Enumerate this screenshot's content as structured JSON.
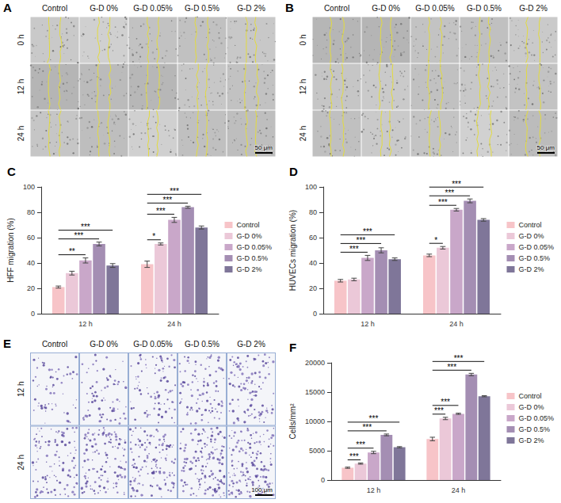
{
  "image_panels": [
    {
      "letter": "A",
      "columns": [
        "Control",
        "G-D 0%",
        "G-D 0.05%",
        "G-D 0.5%",
        "G-D 2%"
      ],
      "rows": [
        "0 h",
        "12 h",
        "24 h"
      ],
      "scale_bar": "50 μm"
    },
    {
      "letter": "B",
      "columns": [
        "Control",
        "G-D 0%",
        "G-D 0.05%",
        "G-D 0.5%",
        "G-D 2%"
      ],
      "rows": [
        "0 h",
        "12 h",
        "24 h"
      ],
      "scale_bar": "50 μm"
    },
    {
      "letter": "E",
      "columns": [
        "Control",
        "G-D 0%",
        "G-D 0.05%",
        "G-D 0.5%",
        "G-D 2%"
      ],
      "rows": [
        "12 h",
        "24 h"
      ],
      "scale_bar": "100 μm"
    }
  ],
  "chart_data": [
    {
      "letter": "C",
      "type": "bar",
      "ylabel": "HFF migration (%)",
      "categories": [
        "12 h",
        "24 h"
      ],
      "ylim": [
        0,
        100
      ],
      "yticks": [
        0,
        20,
        40,
        60,
        80,
        100
      ],
      "grid": false,
      "legend": "right",
      "series": [
        {
          "name": "Control",
          "color": "#f7c4c8",
          "values": [
            21,
            39
          ],
          "errors": [
            0.8,
            2.5
          ]
        },
        {
          "name": "G-D 0%",
          "color": "#ebc8d8",
          "values": [
            32,
            55
          ],
          "errors": [
            1.5,
            0.8
          ]
        },
        {
          "name": "G-D 0.05%",
          "color": "#c9a7c9",
          "values": [
            42,
            74
          ],
          "errors": [
            2,
            2
          ]
        },
        {
          "name": "G-D 0.5%",
          "color": "#a48eb3",
          "values": [
            55,
            84
          ],
          "errors": [
            1.5,
            0.8
          ]
        },
        {
          "name": "G-D 2%",
          "color": "#7f7699",
          "values": [
            38,
            68
          ],
          "errors": [
            1.5,
            1.2
          ]
        }
      ],
      "significance": [
        {
          "category": "12 h",
          "from": "Control",
          "to": "G-D 0.05%",
          "label": "**"
        },
        {
          "category": "12 h",
          "from": "Control",
          "to": "G-D 0.5%",
          "label": "***"
        },
        {
          "category": "12 h",
          "from": "Control",
          "to": "G-D 2%",
          "label": "***"
        },
        {
          "category": "24 h",
          "from": "Control",
          "to": "G-D 0%",
          "label": "*"
        },
        {
          "category": "24 h",
          "from": "Control",
          "to": "G-D 0.05%",
          "label": "***"
        },
        {
          "category": "24 h",
          "from": "Control",
          "to": "G-D 0.5%",
          "label": "***"
        },
        {
          "category": "24 h",
          "from": "Control",
          "to": "G-D 2%",
          "label": "***"
        }
      ]
    },
    {
      "letter": "D",
      "type": "bar",
      "ylabel": "HUVECs migration (%)",
      "categories": [
        "12 h",
        "24 h"
      ],
      "ylim": [
        0,
        100
      ],
      "yticks": [
        0,
        20,
        40,
        60,
        80,
        100
      ],
      "grid": false,
      "legend": "right",
      "series": [
        {
          "name": "Control",
          "color": "#f7c4c8",
          "values": [
            26,
            46
          ],
          "errors": [
            1,
            1
          ]
        },
        {
          "name": "G-D 0%",
          "color": "#ebc8d8",
          "values": [
            27,
            52
          ],
          "errors": [
            1,
            1
          ]
        },
        {
          "name": "G-D 0.05%",
          "color": "#c9a7c9",
          "values": [
            44,
            82
          ],
          "errors": [
            2,
            1
          ]
        },
        {
          "name": "G-D 0.5%",
          "color": "#a48eb3",
          "values": [
            50,
            89
          ],
          "errors": [
            2,
            1.5
          ]
        },
        {
          "name": "G-D 2%",
          "color": "#7f7699",
          "values": [
            43,
            74
          ],
          "errors": [
            1,
            1
          ]
        }
      ],
      "significance": [
        {
          "category": "12 h",
          "from": "Control",
          "to": "G-D 0.05%",
          "label": "***"
        },
        {
          "category": "12 h",
          "from": "Control",
          "to": "G-D 0.5%",
          "label": "***"
        },
        {
          "category": "12 h",
          "from": "Control",
          "to": "G-D 2%",
          "label": "***"
        },
        {
          "category": "24 h",
          "from": "Control",
          "to": "G-D 0%",
          "label": "*"
        },
        {
          "category": "24 h",
          "from": "Control",
          "to": "G-D 0.05%",
          "label": "***"
        },
        {
          "category": "24 h",
          "from": "Control",
          "to": "G-D 0.5%",
          "label": "***"
        },
        {
          "category": "24 h",
          "from": "Control",
          "to": "G-D 2%",
          "label": "***"
        }
      ]
    },
    {
      "letter": "F",
      "type": "bar",
      "ylabel": "Cells/mm²",
      "categories": [
        "12 h",
        "24 h"
      ],
      "ylim": [
        0,
        20000
      ],
      "yticks": [
        0,
        5000,
        10000,
        15000,
        20000
      ],
      "grid": false,
      "legend": "right",
      "series": [
        {
          "name": "Control",
          "color": "#f7c4c8",
          "values": [
            2100,
            7000
          ],
          "errors": [
            100,
            300
          ]
        },
        {
          "name": "G-D 0%",
          "color": "#ebc8d8",
          "values": [
            2800,
            10500
          ],
          "errors": [
            100,
            200
          ]
        },
        {
          "name": "G-D 0.05%",
          "color": "#c9a7c9",
          "values": [
            4700,
            11300
          ],
          "errors": [
            200,
            100
          ]
        },
        {
          "name": "G-D 0.5%",
          "color": "#a48eb3",
          "values": [
            7700,
            18000
          ],
          "errors": [
            150,
            200
          ]
        },
        {
          "name": "G-D 2%",
          "color": "#7f7699",
          "values": [
            5600,
            14300
          ],
          "errors": [
            100,
            100
          ]
        }
      ],
      "significance": [
        {
          "category": "12 h",
          "from": "Control",
          "to": "G-D 0%",
          "label": "***"
        },
        {
          "category": "12 h",
          "from": "Control",
          "to": "G-D 0.05%",
          "label": "***"
        },
        {
          "category": "12 h",
          "from": "Control",
          "to": "G-D 0.5%",
          "label": "***"
        },
        {
          "category": "12 h",
          "from": "Control",
          "to": "G-D 2%",
          "label": "***"
        },
        {
          "category": "24 h",
          "from": "Control",
          "to": "G-D 0%",
          "label": "***"
        },
        {
          "category": "24 h",
          "from": "Control",
          "to": "G-D 0.05%",
          "label": "***"
        },
        {
          "category": "24 h",
          "from": "Control",
          "to": "G-D 0.5%",
          "label": "***"
        },
        {
          "category": "24 h",
          "from": "Control",
          "to": "G-D 2%",
          "label": "***"
        }
      ]
    }
  ]
}
